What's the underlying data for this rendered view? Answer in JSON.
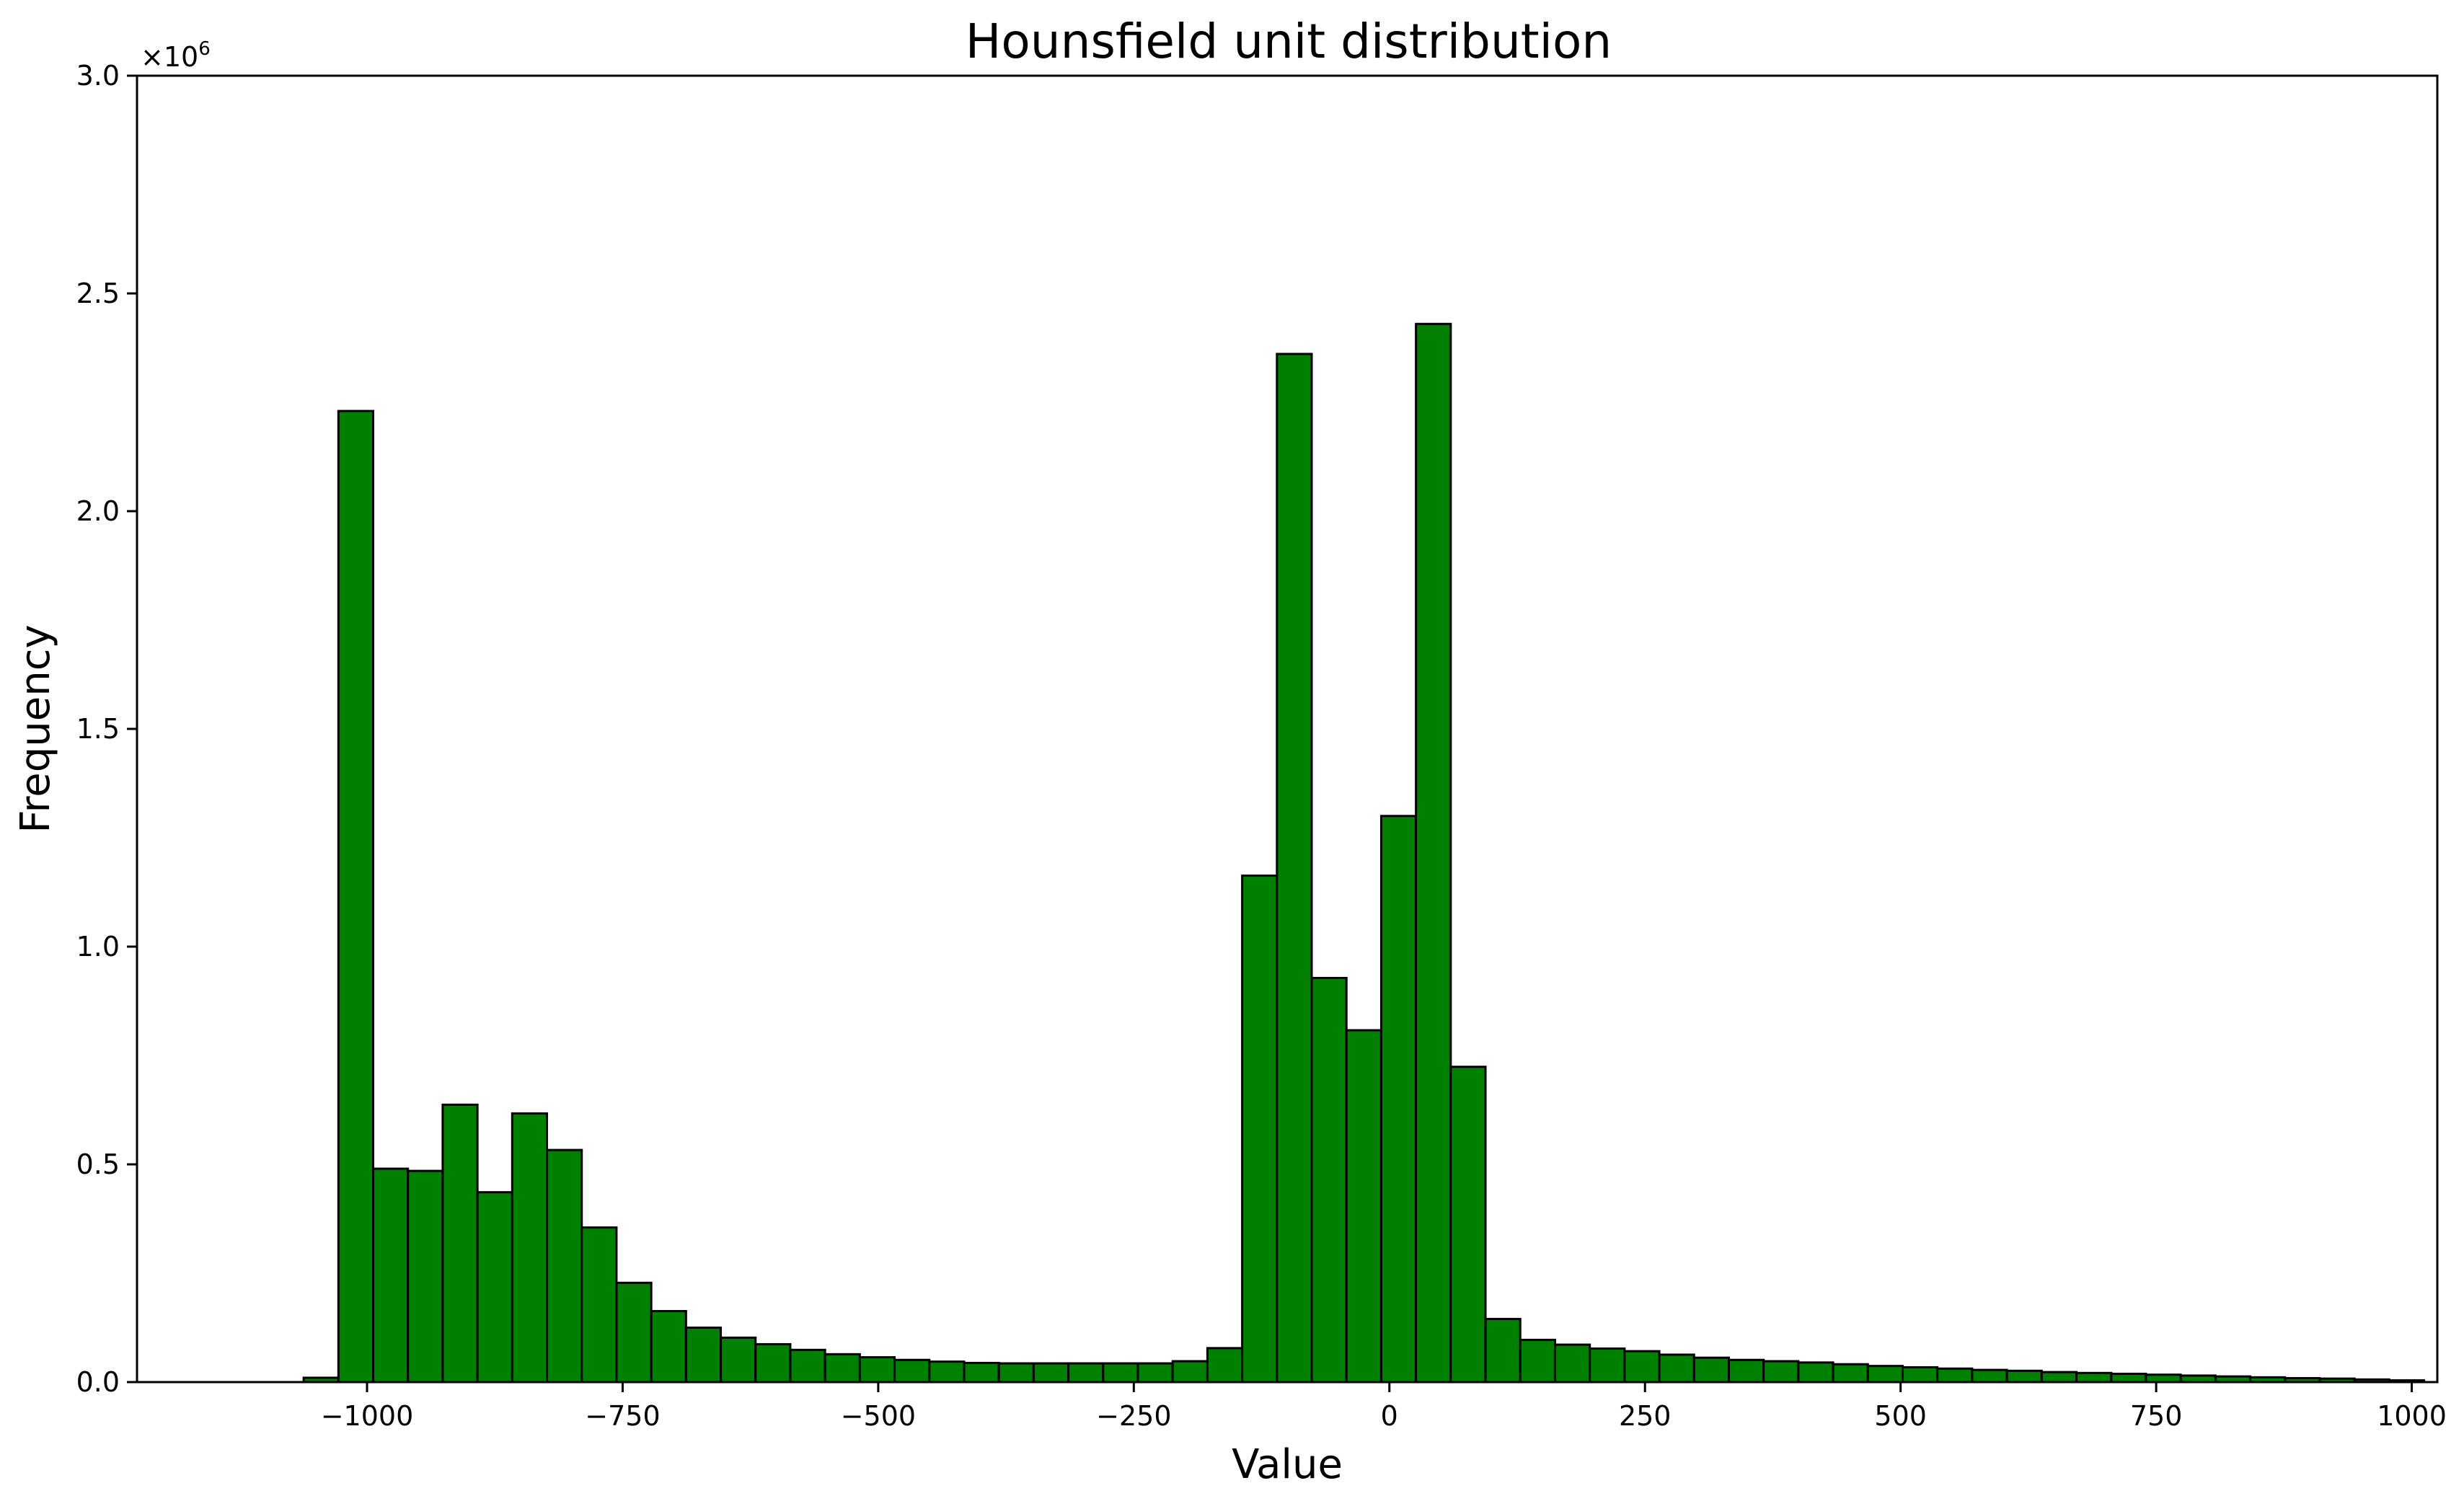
{
  "chart_data": {
    "type": "bar",
    "title": "Hounsfield unit distribution",
    "xlabel": "Value",
    "ylabel": "Frequency",
    "xlim": [
      -1225,
      1025
    ],
    "ylim": [
      0,
      3000000
    ],
    "y_offset_text": "×10",
    "y_offset_exponent": "6",
    "grid": false,
    "bar_color": "#008000",
    "edge_color": "#000000",
    "bin_width": 34,
    "x_ticks": [
      -1000,
      -750,
      -500,
      -250,
      0,
      250,
      500,
      750,
      1000
    ],
    "x_tick_labels": [
      "−1000",
      "−750",
      "−500",
      "−250",
      "0",
      "250",
      "500",
      "750",
      "1000"
    ],
    "y_ticks": [
      0,
      500000,
      1000000,
      1500000,
      2000000,
      2500000,
      3000000
    ],
    "y_tick_labels": [
      "0.0",
      "0.5",
      "1.0",
      "1.5",
      "2.0",
      "2.5",
      "3.0"
    ],
    "bin_starts": [
      -1062,
      -1028,
      -994,
      -960,
      -926,
      -892,
      -858,
      -824,
      -790,
      -756,
      -722,
      -688,
      -654,
      -620,
      -586,
      -552,
      -518,
      -484,
      -450,
      -416,
      -382,
      -348,
      -314,
      -280,
      -246,
      -212,
      -178,
      -144,
      -110,
      -76,
      -42,
      -8,
      26,
      60,
      94,
      128,
      162,
      196,
      230,
      264,
      298,
      332,
      366,
      400,
      434,
      468,
      502,
      536,
      570,
      604,
      638,
      672,
      706,
      740,
      774,
      808,
      842,
      876,
      910,
      944,
      978
    ],
    "values": [
      10000,
      2230000,
      490000,
      485000,
      637000,
      436000,
      617000,
      533000,
      355000,
      228000,
      163000,
      125000,
      102000,
      87000,
      74000,
      64000,
      57000,
      51000,
      47000,
      44000,
      43000,
      43000,
      43000,
      43000,
      43000,
      48000,
      78000,
      1163000,
      2361000,
      928000,
      808000,
      1300000,
      2430000,
      724000,
      145000,
      97000,
      86000,
      77000,
      71000,
      63000,
      56000,
      51000,
      48000,
      45000,
      41000,
      37000,
      34000,
      31000,
      28000,
      26000,
      23000,
      21000,
      19000,
      17000,
      15000,
      13000,
      11000,
      9000,
      8000,
      6000,
      4000
    ]
  }
}
